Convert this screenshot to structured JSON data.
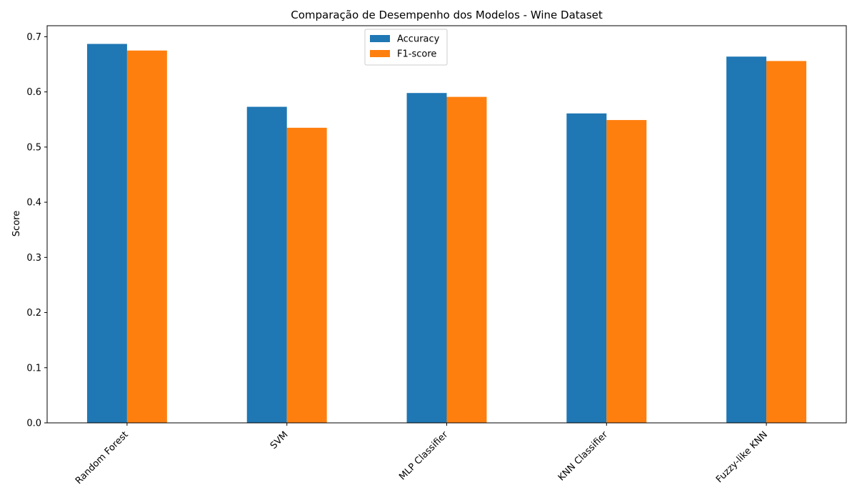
{
  "chart_data": {
    "type": "bar",
    "title": "Comparação de Desempenho dos Modelos - Wine Dataset",
    "xlabel": "",
    "ylabel": "Score",
    "categories": [
      "Random Forest",
      "SVM",
      "MLP Classifier",
      "KNN Classifier",
      "Fuzzy-like KNN"
    ],
    "series": [
      {
        "name": "Accuracy",
        "color": "#1f77b4",
        "values": [
          0.687,
          0.573,
          0.598,
          0.561,
          0.664
        ]
      },
      {
        "name": "F1-score",
        "color": "#ff7f0e",
        "values": [
          0.675,
          0.535,
          0.591,
          0.549,
          0.656
        ]
      }
    ],
    "ylim": [
      0,
      0.72
    ],
    "yticks": [
      "0.0",
      "0.1",
      "0.2",
      "0.3",
      "0.4",
      "0.5",
      "0.6",
      "0.7"
    ],
    "ytick_values": [
      0,
      0.1,
      0.2,
      0.3,
      0.4,
      0.5,
      0.6,
      0.7
    ],
    "grid": false,
    "legend_position": "top-center",
    "x_tick_rotation": "45"
  }
}
